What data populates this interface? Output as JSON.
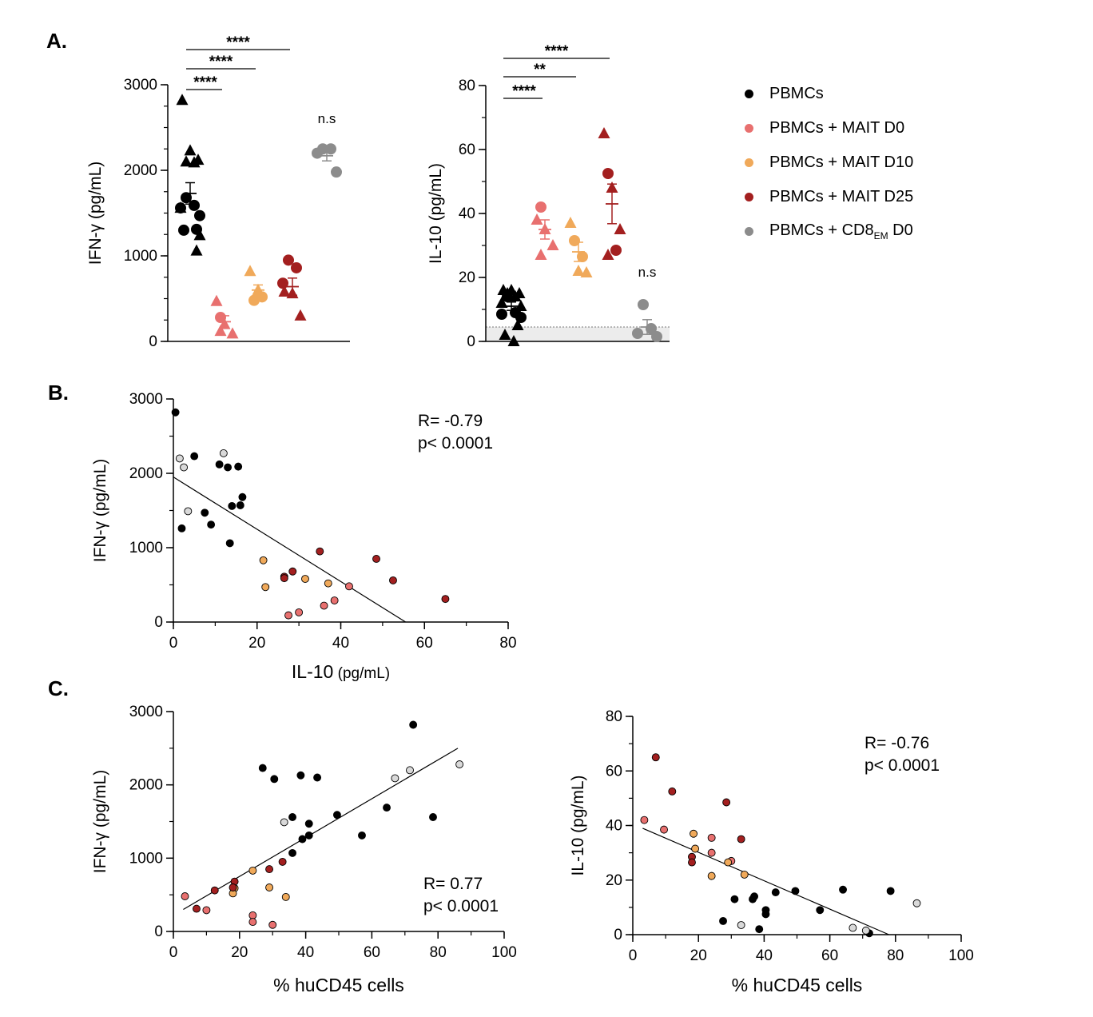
{
  "panel_labels": {
    "a": "A.",
    "b": "B.",
    "c": "C."
  },
  "legend": [
    {
      "label": "PBMCs",
      "color": "#000000"
    },
    {
      "label": "PBMCs + MAIT D0",
      "color": "#e8706f"
    },
    {
      "label": "PBMCs + MAIT D10",
      "color": "#f0a95a"
    },
    {
      "label": "PBMCs + MAIT D25",
      "color": "#a31f1f"
    },
    {
      "label": "PBMCs + CD8",
      "sub": "EM",
      "suffix": " D0",
      "color": "#8c8c8c"
    }
  ],
  "chart_data": [
    {
      "id": "A1",
      "type": "scatter",
      "subtype": "grouped-dot-plot",
      "ylabel": "IFN-γ (pg/mL)",
      "ylim": [
        0,
        3000
      ],
      "yticks": [
        0,
        1000,
        2000,
        3000
      ],
      "groups": [
        {
          "series": "PBMCs",
          "color": "#000000",
          "mean": 1730,
          "sem": 125,
          "triangles": [
            2820,
            2230,
            2120,
            2100,
            2090,
            1560,
            1240,
            1060
          ],
          "circles": [
            1680,
            1590,
            1560,
            1470,
            1310,
            1300
          ]
        },
        {
          "series": "PBMCs + MAIT D0",
          "color": "#e8706f",
          "mean": 230,
          "sem": 70,
          "triangles": [
            470,
            200,
            90,
            120
          ],
          "circles": [
            280
          ]
        },
        {
          "series": "PBMCs + MAIT D10",
          "color": "#f0a95a",
          "mean": 600,
          "sem": 60,
          "triangles": [
            820,
            600
          ],
          "circles": [
            480,
            520
          ]
        },
        {
          "series": "PBMCs + MAIT D25",
          "color": "#a31f1f",
          "mean": 640,
          "sem": 100,
          "triangles": [
            580,
            560,
            300
          ],
          "circles": [
            950,
            860,
            680
          ]
        },
        {
          "series": "PBMCs + CD8EM D0",
          "color": "#8c8c8c",
          "mean": 2170,
          "sem": 60,
          "triangles": [],
          "circles": [
            2250,
            2250,
            2200,
            1980
          ]
        }
      ],
      "significance": [
        {
          "from": 0,
          "to": 1,
          "label": "****"
        },
        {
          "from": 0,
          "to": 2,
          "label": "****"
        },
        {
          "from": 0,
          "to": 3,
          "label": "****"
        },
        {
          "group": 4,
          "label": "n.s"
        }
      ]
    },
    {
      "id": "A2",
      "type": "scatter",
      "subtype": "grouped-dot-plot",
      "ylabel": "IL-10 (pg/mL)",
      "ylim": [
        0,
        80
      ],
      "yticks": [
        0,
        20,
        40,
        60,
        80
      ],
      "detection_limit": 4.5,
      "groups": [
        {
          "series": "PBMCs",
          "color": "#000000",
          "mean": 11,
          "sem": 1.3,
          "triangles": [
            16,
            16,
            15,
            15,
            14,
            12,
            11,
            5,
            2,
            0
          ],
          "circles": [
            14,
            9,
            8.5,
            7.5
          ]
        },
        {
          "series": "PBMCs + MAIT D0",
          "color": "#e8706f",
          "mean": 35,
          "sem": 3,
          "triangles": [
            38,
            35,
            30,
            27
          ],
          "circles": [
            42
          ]
        },
        {
          "series": "PBMCs + MAIT D10",
          "color": "#f0a95a",
          "mean": 28,
          "sem": 3,
          "triangles": [
            37,
            22,
            21.5
          ],
          "circles": [
            31.5,
            26.5
          ]
        },
        {
          "series": "PBMCs + MAIT D25",
          "color": "#a31f1f",
          "mean": 43,
          "sem": 6.2,
          "triangles": [
            65,
            48,
            35,
            27
          ],
          "circles": [
            52.5,
            28.5
          ]
        },
        {
          "series": "PBMCs + CD8EM D0",
          "color": "#8c8c8c",
          "mean": 4.5,
          "sem": 2.3,
          "triangles": [],
          "circles": [
            11.5,
            4,
            2.5,
            1.5
          ]
        }
      ],
      "significance": [
        {
          "from": 0,
          "to": 1,
          "label": "****"
        },
        {
          "from": 0,
          "to": 2,
          "label": "**"
        },
        {
          "from": 0,
          "to": 3,
          "label": "****"
        },
        {
          "group": 4,
          "label": "n.s"
        }
      ]
    },
    {
      "id": "B",
      "type": "scatter",
      "xlabel": "IL-10",
      "xlabel_unit": "(pg/mL)",
      "ylabel": "IFN-γ (pg/mL)",
      "xlim": [
        0,
        80
      ],
      "ylim": [
        0,
        3000
      ],
      "xticks": [
        0,
        20,
        40,
        60,
        80
      ],
      "yticks": [
        0,
        1000,
        2000,
        3000
      ],
      "annotation": [
        "R= -0.79",
        "p< 0.0001"
      ],
      "fit": [
        [
          0,
          1950
        ],
        [
          55.5,
          0
        ]
      ],
      "series": [
        {
          "group": "PBMCs",
          "color": "#000000",
          "points": [
            [
              0.5,
              2820
            ],
            [
              5,
              2230
            ],
            [
              11,
              2120
            ],
            [
              13,
              2080
            ],
            [
              15.5,
              2090
            ],
            [
              16.5,
              1680
            ],
            [
              14,
              1560
            ],
            [
              16,
              1570
            ],
            [
              7.5,
              1470
            ],
            [
              9,
              1310
            ],
            [
              2,
              1260
            ],
            [
              13.5,
              1060
            ]
          ]
        },
        {
          "group": "PBMCs + CD8EM D0",
          "color": "#d9d9d9",
          "points": [
            [
              12,
              2270
            ],
            [
              1.5,
              2200
            ],
            [
              2.5,
              2080
            ],
            [
              3.5,
              1490
            ]
          ]
        },
        {
          "group": "PBMCs + MAIT D0",
          "color": "#e8706f",
          "points": [
            [
              42,
              480
            ],
            [
              38.5,
              290
            ],
            [
              36,
              220
            ],
            [
              30,
              130
            ],
            [
              27.5,
              90
            ]
          ]
        },
        {
          "group": "PBMCs + MAIT D10",
          "color": "#f0a95a",
          "points": [
            [
              21.5,
              830
            ],
            [
              31.5,
              580
            ],
            [
              37,
              520
            ],
            [
              22,
              470
            ]
          ]
        },
        {
          "group": "PBMCs + MAIT D25",
          "color": "#a31f1f",
          "points": [
            [
              35,
              950
            ],
            [
              48.5,
              850
            ],
            [
              52.5,
              560
            ],
            [
              28.5,
              680
            ],
            [
              26.5,
              610
            ],
            [
              26.5,
              590
            ],
            [
              65,
              310
            ]
          ]
        }
      ]
    },
    {
      "id": "C1",
      "type": "scatter",
      "xlabel": "% huCD45 cells",
      "ylabel": "IFN-γ (pg/mL)",
      "xlim": [
        0,
        100
      ],
      "ylim": [
        0,
        3000
      ],
      "xticks": [
        0,
        20,
        40,
        60,
        80,
        100
      ],
      "yticks": [
        0,
        1000,
        2000,
        3000
      ],
      "annotation": [
        "R= 0.77",
        "p< 0.0001"
      ],
      "fit": [
        [
          3,
          300
        ],
        [
          86,
          2500
        ]
      ],
      "series": [
        {
          "group": "PBMCs",
          "color": "#000000",
          "points": [
            [
              72.5,
              2820
            ],
            [
              27,
              2230
            ],
            [
              38.5,
              2130
            ],
            [
              43.5,
              2100
            ],
            [
              30.5,
              2080
            ],
            [
              64.5,
              1690
            ],
            [
              49.5,
              1590
            ],
            [
              78.5,
              1560
            ],
            [
              36,
              1560
            ],
            [
              41,
              1470
            ],
            [
              57,
              1310
            ],
            [
              41,
              1310
            ],
            [
              39,
              1260
            ],
            [
              36,
              1070
            ]
          ]
        },
        {
          "group": "PBMCs + CD8EM D0",
          "color": "#d9d9d9",
          "points": [
            [
              86.5,
              2280
            ],
            [
              71.5,
              2200
            ],
            [
              67,
              2090
            ],
            [
              33.5,
              1490
            ]
          ]
        },
        {
          "group": "PBMCs + MAIT D0",
          "color": "#e8706f",
          "points": [
            [
              3.5,
              480
            ],
            [
              24,
              220
            ],
            [
              24,
              130
            ],
            [
              30,
              90
            ],
            [
              10,
              290
            ]
          ]
        },
        {
          "group": "PBMCs + MAIT D10",
          "color": "#f0a95a",
          "points": [
            [
              24,
              830
            ],
            [
              29,
              600
            ],
            [
              18.5,
              590
            ],
            [
              18,
              520
            ],
            [
              34,
              470
            ]
          ]
        },
        {
          "group": "PBMCs + MAIT D25",
          "color": "#a31f1f",
          "points": [
            [
              29,
              850
            ],
            [
              33,
              950
            ],
            [
              18.5,
              680
            ],
            [
              18,
              600
            ],
            [
              12.5,
              560
            ],
            [
              7,
              310
            ]
          ]
        }
      ]
    },
    {
      "id": "C2",
      "type": "scatter",
      "xlabel": "% huCD45 cells",
      "ylabel": "IL-10 (pg/mL)",
      "xlim": [
        0,
        100
      ],
      "ylim": [
        0,
        80
      ],
      "xticks": [
        0,
        20,
        40,
        60,
        80,
        100
      ],
      "yticks": [
        0,
        20,
        40,
        60,
        80
      ],
      "annotation": [
        "R= -0.76",
        "p< 0.0001"
      ],
      "fit": [
        [
          3,
          39
        ],
        [
          78,
          0
        ]
      ],
      "series": [
        {
          "group": "PBMCs",
          "color": "#000000",
          "points": [
            [
              72,
              0.5
            ],
            [
              78.5,
              16
            ],
            [
              64,
              16.5
            ],
            [
              49.5,
              16
            ],
            [
              57,
              9
            ],
            [
              43.5,
              15.5
            ],
            [
              37,
              14
            ],
            [
              36.5,
              13
            ],
            [
              40.5,
              9
            ],
            [
              40.5,
              7.5
            ],
            [
              31,
              13
            ],
            [
              27.5,
              5
            ],
            [
              38.5,
              2
            ]
          ]
        },
        {
          "group": "PBMCs + CD8EM D0",
          "color": "#d9d9d9",
          "points": [
            [
              86.5,
              11.5
            ],
            [
              33,
              3.5
            ],
            [
              67,
              2.5
            ],
            [
              71,
              1.5
            ]
          ]
        },
        {
          "group": "PBMCs + MAIT D0",
          "color": "#e8706f",
          "points": [
            [
              3.5,
              42
            ],
            [
              9.5,
              38.5
            ],
            [
              24,
              35.5
            ],
            [
              24,
              30
            ],
            [
              30,
              27
            ]
          ]
        },
        {
          "group": "PBMCs + MAIT D10",
          "color": "#f0a95a",
          "points": [
            [
              18.5,
              37
            ],
            [
              19,
              31.5
            ],
            [
              29,
              26.5
            ],
            [
              34,
              22
            ],
            [
              24,
              21.5
            ]
          ]
        },
        {
          "group": "PBMCs + MAIT D25",
          "color": "#a31f1f",
          "points": [
            [
              7,
              65
            ],
            [
              12,
              52.5
            ],
            [
              28.5,
              48.5
            ],
            [
              33,
              35
            ],
            [
              18,
              28.5
            ],
            [
              18,
              26.5
            ]
          ]
        }
      ]
    }
  ]
}
